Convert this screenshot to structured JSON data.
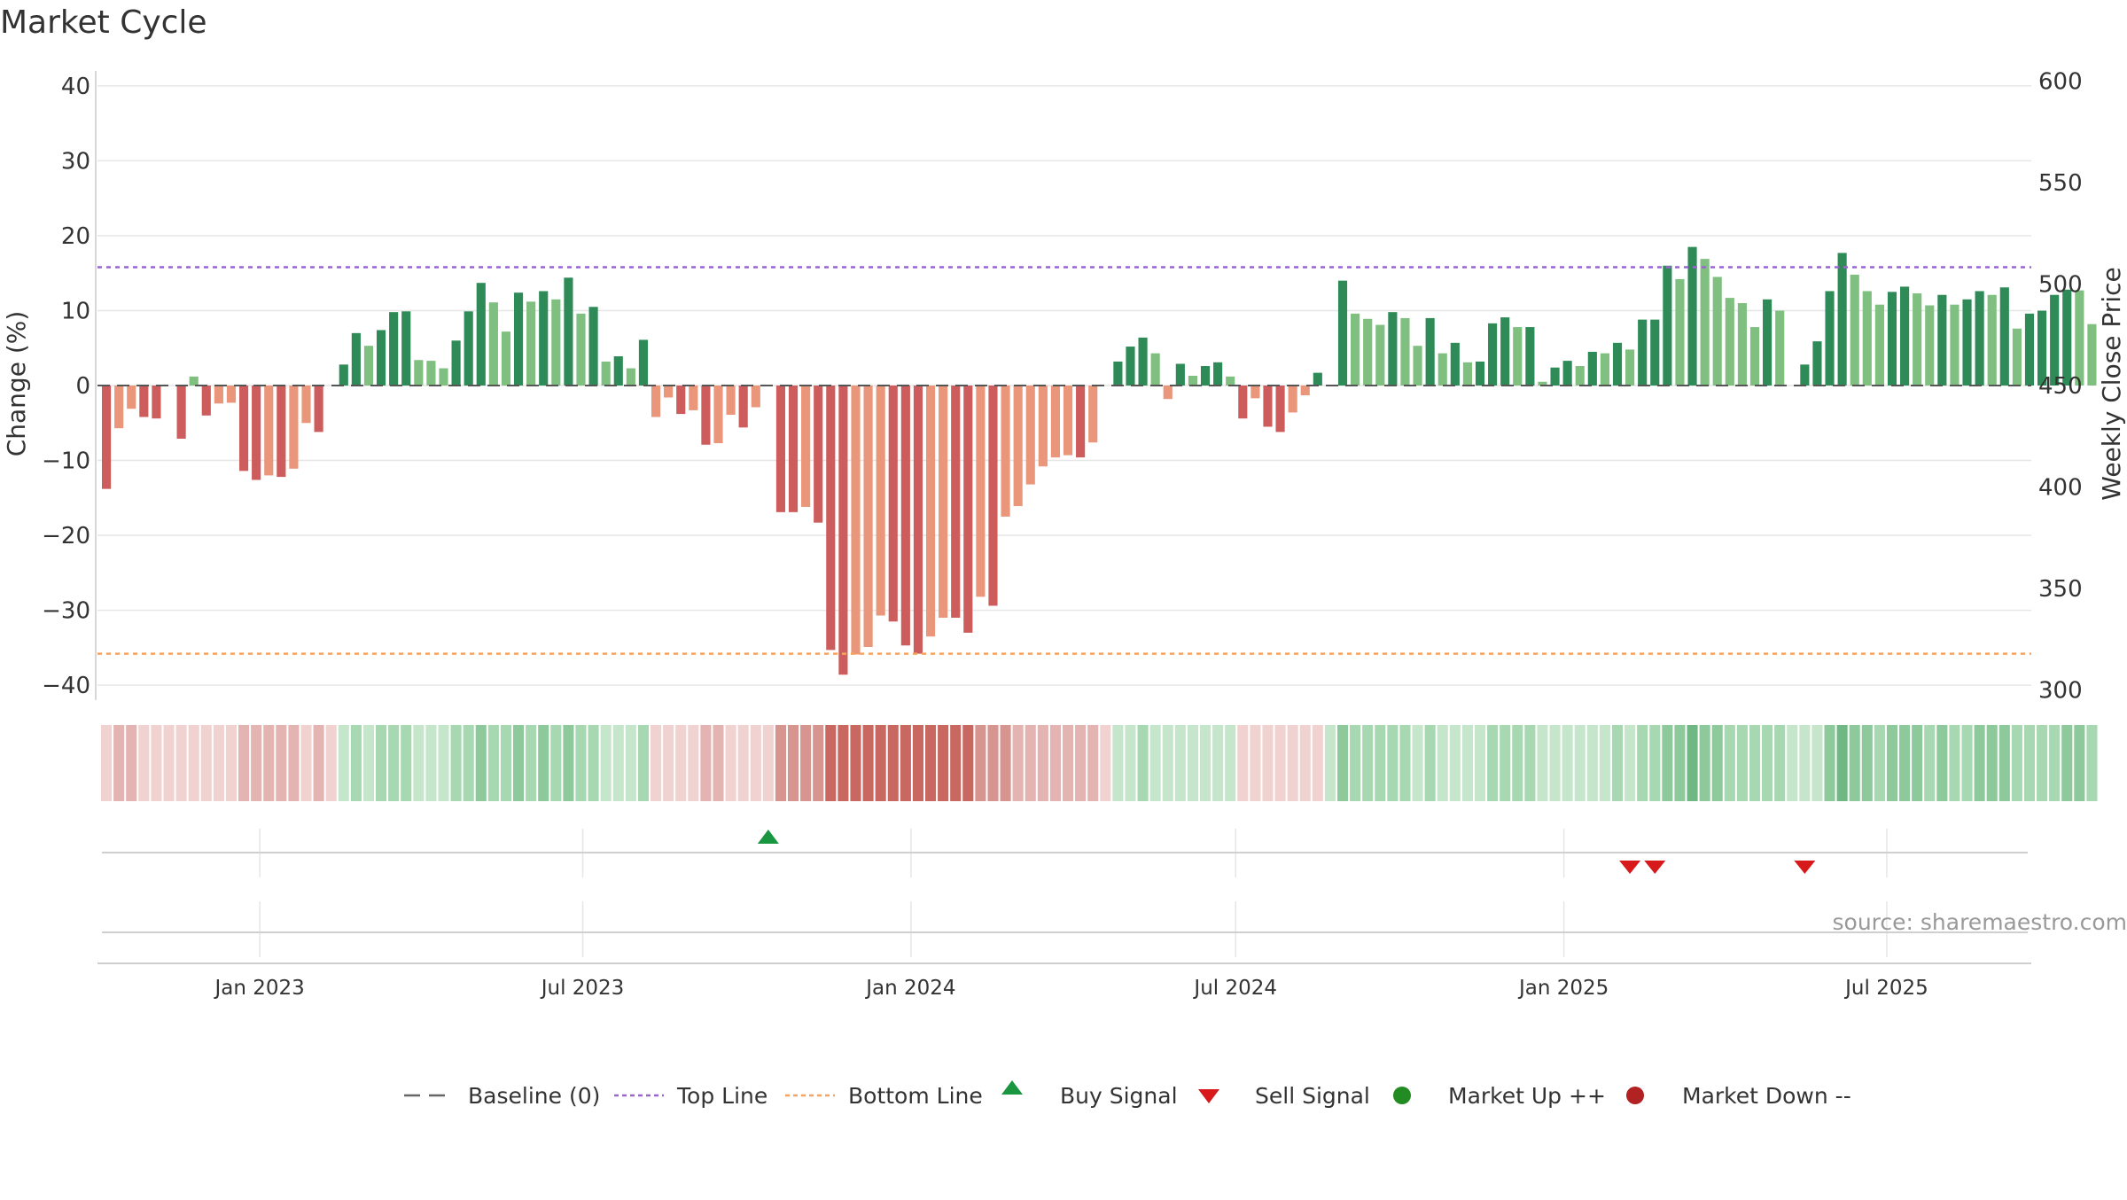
{
  "chart_data": {
    "type": "bar",
    "title": "Market Cycle",
    "ylabel": "Change (%)",
    "y2label": "Weekly Close Price",
    "ylim": [
      -42,
      42
    ],
    "y2lim": [
      295,
      605
    ],
    "yticks": [
      40,
      30,
      20,
      10,
      0,
      -10,
      -20,
      -30,
      -40
    ],
    "ytick_labels": [
      "40",
      "30",
      "20",
      "10",
      "0",
      "−10",
      "−20",
      "−30",
      "−40"
    ],
    "y2ticks": [
      600,
      550,
      500,
      450,
      400,
      350,
      300
    ],
    "xlim": [
      "2022-10-02",
      "2025-09-20"
    ],
    "xticks": [
      "2023-01-01",
      "2023-07-01",
      "2024-01-01",
      "2024-07-01",
      "2025-01-01",
      "2025-07-01"
    ],
    "xtick_labels": [
      "Jan 2023",
      "Jul 2023",
      "Jan 2024",
      "Jul 2024",
      "Jan 2025",
      "Jul 2025"
    ],
    "start_date": "2022-10-07",
    "top_line": 15.8,
    "bottom_line": -35.8,
    "baseline": 0,
    "values": [
      -13.8,
      -5.7,
      -3.1,
      -4.2,
      -4.4,
      0,
      -7.1,
      1.2,
      -4.0,
      -2.4,
      -2.3,
      -11.4,
      -12.6,
      -12.0,
      -12.2,
      -11.1,
      -5.0,
      -6.2,
      0,
      2.8,
      7.0,
      5.3,
      7.4,
      9.8,
      9.9,
      3.4,
      3.3,
      2.3,
      6.0,
      9.9,
      13.7,
      11.1,
      7.2,
      12.4,
      11.2,
      12.6,
      11.5,
      14.4,
      9.6,
      10.5,
      3.2,
      3.9,
      2.3,
      6.1,
      -4.2,
      -1.6,
      -3.8,
      -3.3,
      -7.9,
      -7.7,
      -3.9,
      -5.6,
      -2.9,
      0,
      -16.9,
      -16.9,
      -16.2,
      -18.3,
      -35.3,
      -38.6,
      -35.9,
      -34.9,
      -30.7,
      -31.5,
      -34.7,
      -35.8,
      -33.5,
      -31.0,
      -31.0,
      -33.0,
      -28.2,
      -29.4,
      -17.5,
      -16.1,
      -13.2,
      -10.8,
      -9.6,
      -9.3,
      -9.6,
      -7.6,
      0,
      3.2,
      5.2,
      6.4,
      4.3,
      -1.8,
      2.9,
      1.3,
      2.6,
      3.1,
      1.2,
      -4.4,
      -1.7,
      -5.5,
      -6.2,
      -3.6,
      -1.3,
      1.7,
      0,
      14.0,
      9.6,
      8.9,
      8.1,
      9.8,
      9.0,
      5.3,
      9.0,
      4.3,
      5.7,
      3.1,
      3.2,
      8.3,
      9.1,
      7.8,
      7.8,
      0.5,
      2.4,
      3.3,
      2.6,
      4.5,
      4.3,
      5.7,
      4.8,
      8.8,
      8.8,
      16.0,
      14.2,
      18.5,
      16.9,
      14.5,
      11.7,
      11.0,
      7.8,
      11.5,
      10.0,
      0,
      2.8,
      5.9,
      12.6,
      17.7,
      14.8,
      12.6,
      10.8,
      12.5,
      13.2,
      12.3,
      10.7,
      12.1,
      10.8,
      11.5,
      12.6,
      12.1,
      13.1,
      7.6,
      9.6,
      10.0,
      12.1,
      12.8,
      12.7,
      8.2
    ],
    "strip_shades": [
      1,
      2,
      2,
      1,
      1,
      0,
      1,
      0,
      1,
      1,
      1,
      2,
      2,
      2,
      2,
      2,
      1,
      2,
      0,
      1,
      2,
      1,
      2,
      2,
      2,
      1,
      1,
      1,
      2,
      2,
      3,
      2,
      2,
      3,
      2,
      3,
      2,
      3,
      2,
      2,
      1,
      1,
      1,
      2,
      1,
      1,
      1,
      1,
      2,
      2,
      1,
      1,
      1,
      0,
      3,
      3,
      3,
      3,
      4,
      4,
      4,
      4,
      4,
      4,
      4,
      4,
      4,
      4,
      4,
      4,
      3,
      3,
      3,
      2,
      2,
      2,
      2,
      2,
      2,
      2,
      0,
      1,
      1,
      2,
      1,
      0,
      1,
      1,
      1,
      1,
      1,
      1,
      1,
      1,
      1,
      1,
      0,
      0,
      0,
      3,
      2,
      2,
      2,
      2,
      2,
      1,
      2,
      1,
      1,
      1,
      1,
      2,
      2,
      2,
      2,
      0,
      0,
      1,
      1,
      1,
      1,
      2,
      1,
      2,
      2,
      3,
      3,
      4,
      3,
      3,
      2,
      2,
      2,
      2,
      2,
      0,
      1,
      1,
      3,
      4,
      3,
      3,
      2,
      3,
      3,
      3,
      2,
      3,
      2,
      2,
      3,
      3,
      3,
      2,
      2,
      2,
      2,
      3,
      3,
      2
    ],
    "buy_signals": [
      "2023-10-13"
    ],
    "sell_signals": [
      "2025-02-07",
      "2025-02-21",
      "2025-05-16"
    ],
    "market_up": [],
    "market_down": [],
    "legend": [
      {
        "label": "Baseline (0)",
        "symbol": "dash"
      },
      {
        "label": "Top Line",
        "symbol": "dotted-purple"
      },
      {
        "label": "Bottom Line",
        "symbol": "dotted-orange"
      },
      {
        "label": "Buy Signal",
        "symbol": "triangle-up"
      },
      {
        "label": "Sell Signal",
        "symbol": "triangle-down"
      },
      {
        "label": "Market Up ++",
        "symbol": "circle-green"
      },
      {
        "label": "Market Down --",
        "symbol": "circle-red"
      }
    ],
    "legend_position": "bottom",
    "source_label": "source: sharemaestro.com",
    "grid": true
  },
  "colors": {
    "up_strong": "#2e8b57",
    "up_light": "#7fbf7f",
    "down_strong": "#cd5c5c",
    "down_light": "#e9967a",
    "top_line": "#9966cc",
    "bottom_line": "#f4a460",
    "buy": "#1a9641",
    "sell": "#d7191c",
    "market_up": "#228b22",
    "market_down": "#b22222",
    "grid": "#e6e6e6",
    "axis": "#cccccc",
    "text": "#333333",
    "baseline": "#555555"
  }
}
